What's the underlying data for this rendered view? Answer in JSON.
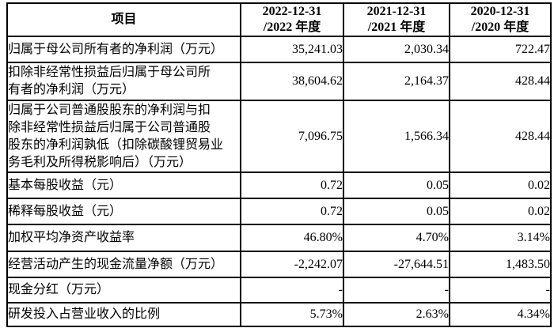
{
  "page": {
    "background_color": "#ffffff",
    "border_color": "#000000",
    "text_color": "#000000"
  },
  "table": {
    "header": {
      "item_label": "项目",
      "period_2022": "2022-12-31\n/2022 年度",
      "period_2021": "2021-12-31\n/2021 年度",
      "period_2020": "2020-12-31\n/2020 年度"
    },
    "rows": [
      {
        "label": "归属于母公司所有者的净利润（万元）",
        "v2022": "35,241.03",
        "v2021": "2,030.34",
        "v2020": "722.47"
      },
      {
        "label": "扣除非经常性损益后归属于母公司所\n有者的净利润（万元）",
        "v2022": "38,604.62",
        "v2021": "2,164.37",
        "v2020": "428.44"
      },
      {
        "label": "归属于公司普通股股东的净利润与扣\n除非经常性损益后归属于公司普通股\n股东的净利润孰低（扣除碳酸锂贸易业\n务毛利及所得税影响后）（万元）",
        "v2022": "7,096.75",
        "v2021": "1,566.34",
        "v2020": "428.44"
      },
      {
        "label": "基本每股收益（元）",
        "v2022": "0.72",
        "v2021": "0.05",
        "v2020": "0.02"
      },
      {
        "label": "稀释每股收益（元）",
        "v2022": "0.72",
        "v2021": "0.05",
        "v2020": "0.02"
      },
      {
        "label": "加权平均净资产收益率",
        "v2022": "46.80%",
        "v2021": "4.70%",
        "v2020": "3.14%"
      },
      {
        "label": "经营活动产生的现金流量净额（万元）",
        "v2022": "-2,242.07",
        "v2021": "-27,644.51",
        "v2020": "1,483.50"
      },
      {
        "label": "现金分红（万元）",
        "v2022": "-",
        "v2021": "-",
        "v2020": "-"
      },
      {
        "label": "研发投入占营业收入的比例",
        "v2022": "5.73%",
        "v2021": "2.63%",
        "v2020": "4.34%"
      }
    ]
  }
}
